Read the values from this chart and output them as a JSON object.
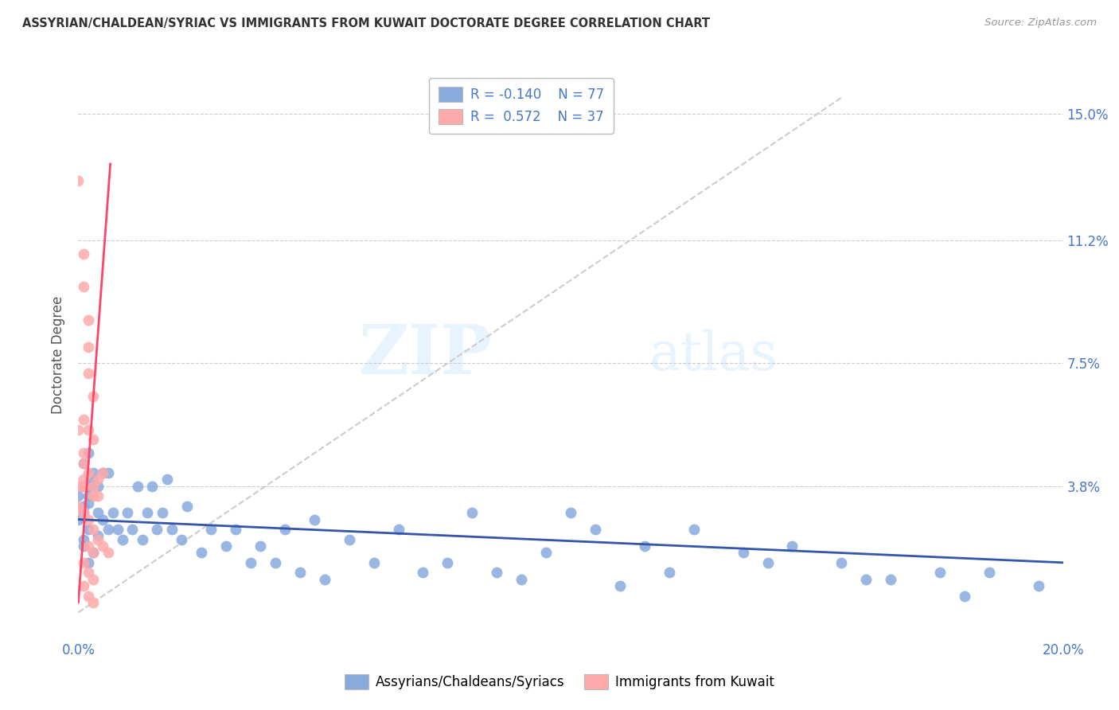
{
  "title": "ASSYRIAN/CHALDEAN/SYRIAC VS IMMIGRANTS FROM KUWAIT DOCTORATE DEGREE CORRELATION CHART",
  "source": "Source: ZipAtlas.com",
  "ylabel": "Doctorate Degree",
  "ytick_labels": [
    "15.0%",
    "11.2%",
    "7.5%",
    "3.8%"
  ],
  "ytick_values": [
    0.15,
    0.112,
    0.075,
    0.038
  ],
  "xlim": [
    0.0,
    0.2
  ],
  "ylim": [
    -0.008,
    0.163
  ],
  "color_blue": "#88AADD",
  "color_pink": "#FFAAAA",
  "color_line_blue": "#3355AA",
  "color_line_pink": "#FF4466",
  "color_line_diag": "#CCCCCC",
  "color_text_blue": "#4477CC",
  "watermark_zip": "ZIP",
  "watermark_atlas": "atlas",
  "legend_label1": "Assyrians/Chaldeans/Syriacs",
  "legend_label2": "Immigrants from Kuwait",
  "blue_scatter": [
    [
      0.001,
      0.045
    ],
    [
      0.002,
      0.038
    ],
    [
      0.001,
      0.032
    ],
    [
      0.003,
      0.042
    ],
    [
      0.002,
      0.048
    ],
    [
      0.001,
      0.038
    ],
    [
      0.0,
      0.035
    ],
    [
      0.002,
      0.035
    ],
    [
      0.003,
      0.04
    ],
    [
      0.004,
      0.038
    ],
    [
      0.0,
      0.028
    ],
    [
      0.001,
      0.03
    ],
    [
      0.002,
      0.033
    ],
    [
      0.003,
      0.038
    ],
    [
      0.005,
      0.042
    ],
    [
      0.006,
      0.042
    ],
    [
      0.001,
      0.022
    ],
    [
      0.002,
      0.025
    ],
    [
      0.004,
      0.03
    ],
    [
      0.001,
      0.02
    ],
    [
      0.002,
      0.015
    ],
    [
      0.003,
      0.018
    ],
    [
      0.007,
      0.03
    ],
    [
      0.008,
      0.025
    ],
    [
      0.005,
      0.028
    ],
    [
      0.01,
      0.03
    ],
    [
      0.012,
      0.038
    ],
    [
      0.015,
      0.038
    ],
    [
      0.018,
      0.04
    ],
    [
      0.004,
      0.023
    ],
    [
      0.006,
      0.025
    ],
    [
      0.009,
      0.022
    ],
    [
      0.011,
      0.025
    ],
    [
      0.013,
      0.022
    ],
    [
      0.016,
      0.025
    ],
    [
      0.019,
      0.025
    ],
    [
      0.014,
      0.03
    ],
    [
      0.017,
      0.03
    ],
    [
      0.021,
      0.022
    ],
    [
      0.025,
      0.018
    ],
    [
      0.03,
      0.02
    ],
    [
      0.035,
      0.015
    ],
    [
      0.04,
      0.015
    ],
    [
      0.045,
      0.012
    ],
    [
      0.05,
      0.01
    ],
    [
      0.06,
      0.015
    ],
    [
      0.07,
      0.012
    ],
    [
      0.08,
      0.03
    ],
    [
      0.09,
      0.01
    ],
    [
      0.1,
      0.03
    ],
    [
      0.11,
      0.008
    ],
    [
      0.12,
      0.012
    ],
    [
      0.14,
      0.015
    ],
    [
      0.16,
      0.01
    ],
    [
      0.18,
      0.005
    ],
    [
      0.022,
      0.032
    ],
    [
      0.027,
      0.025
    ],
    [
      0.032,
      0.025
    ],
    [
      0.037,
      0.02
    ],
    [
      0.042,
      0.025
    ],
    [
      0.048,
      0.028
    ],
    [
      0.055,
      0.022
    ],
    [
      0.065,
      0.025
    ],
    [
      0.075,
      0.015
    ],
    [
      0.085,
      0.012
    ],
    [
      0.095,
      0.018
    ],
    [
      0.105,
      0.025
    ],
    [
      0.115,
      0.02
    ],
    [
      0.125,
      0.025
    ],
    [
      0.135,
      0.018
    ],
    [
      0.145,
      0.02
    ],
    [
      0.155,
      0.015
    ],
    [
      0.165,
      0.01
    ],
    [
      0.175,
      0.012
    ],
    [
      0.185,
      0.012
    ],
    [
      0.195,
      0.008
    ]
  ],
  "pink_scatter": [
    [
      0.0,
      0.13
    ],
    [
      0.001,
      0.108
    ],
    [
      0.001,
      0.098
    ],
    [
      0.002,
      0.088
    ],
    [
      0.002,
      0.08
    ],
    [
      0.002,
      0.072
    ],
    [
      0.003,
      0.065
    ],
    [
      0.001,
      0.058
    ],
    [
      0.002,
      0.055
    ],
    [
      0.003,
      0.052
    ],
    [
      0.0,
      0.038
    ],
    [
      0.001,
      0.04
    ],
    [
      0.001,
      0.038
    ],
    [
      0.002,
      0.042
    ],
    [
      0.003,
      0.035
    ],
    [
      0.003,
      0.038
    ],
    [
      0.004,
      0.04
    ],
    [
      0.005,
      0.042
    ],
    [
      0.0,
      0.032
    ],
    [
      0.001,
      0.03
    ],
    [
      0.002,
      0.028
    ],
    [
      0.003,
      0.025
    ],
    [
      0.004,
      0.035
    ],
    [
      0.0,
      0.055
    ],
    [
      0.001,
      0.048
    ],
    [
      0.001,
      0.045
    ],
    [
      0.002,
      0.02
    ],
    [
      0.003,
      0.018
    ],
    [
      0.004,
      0.022
    ],
    [
      0.005,
      0.02
    ],
    [
      0.006,
      0.018
    ],
    [
      0.001,
      0.015
    ],
    [
      0.002,
      0.012
    ],
    [
      0.003,
      0.01
    ],
    [
      0.001,
      0.008
    ],
    [
      0.002,
      0.005
    ],
    [
      0.003,
      0.003
    ]
  ],
  "blue_line_x": [
    0.0,
    0.2
  ],
  "blue_line_y": [
    0.028,
    0.015
  ],
  "pink_line_x": [
    0.0,
    0.0065
  ],
  "pink_line_y": [
    0.003,
    0.135
  ],
  "diag_line_x": [
    0.0,
    0.155
  ],
  "diag_line_y": [
    0.0,
    0.155
  ]
}
